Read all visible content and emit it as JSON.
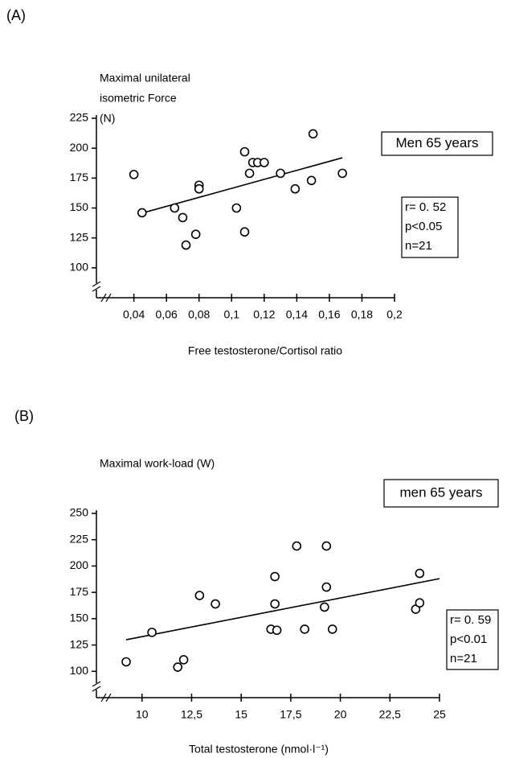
{
  "chart_data": [
    {
      "type": "scatter",
      "panel_label": "(A)",
      "y_label_lines": [
        "Maximal unilateral",
        "isometric Force",
        "(N)"
      ],
      "x_label": "Free testosterone/Cortisol ratio",
      "box_label": "Men 65 years",
      "stats": [
        "r= 0. 52",
        "p<0.05",
        "n=21"
      ],
      "x": [
        0.04,
        0.045,
        0.065,
        0.07,
        0.072,
        0.078,
        0.08,
        0.08,
        0.103,
        0.108,
        0.108,
        0.111,
        0.113,
        0.116,
        0.12,
        0.13,
        0.139,
        0.149,
        0.15,
        0.168
      ],
      "values": [
        178,
        146,
        150,
        142,
        119,
        128,
        169,
        166,
        150,
        197,
        130,
        179,
        188,
        188,
        188,
        179,
        166,
        173,
        212,
        179
      ],
      "trend_line": {
        "x": [
          0.043,
          0.168
        ],
        "y": [
          145,
          192
        ]
      },
      "xlim": [
        0.017,
        0.2
      ],
      "ylim": [
        75,
        225
      ],
      "xticks": [
        {
          "value": 0.04,
          "label": "0,04"
        },
        {
          "value": 0.06,
          "label": "0,06"
        },
        {
          "value": 0.08,
          "label": "0,08"
        },
        {
          "value": 0.1,
          "label": "0,1"
        },
        {
          "value": 0.12,
          "label": "0,12"
        },
        {
          "value": 0.14,
          "label": "0,14"
        },
        {
          "value": 0.16,
          "label": "0,16"
        },
        {
          "value": 0.18,
          "label": "0,18"
        },
        {
          "value": 0.2,
          "label": "0,2"
        }
      ],
      "yticks": [
        100,
        125,
        150,
        175,
        200,
        225
      ]
    },
    {
      "type": "scatter",
      "panel_label": "(B)",
      "y_label_lines": [
        "Maximal work-load (W)"
      ],
      "x_label": "Total testosterone (nmol·l⁻¹)",
      "box_label": "men 65 years",
      "stats": [
        "r= 0. 59",
        "p<0.01",
        "n=21"
      ],
      "x": [
        9.2,
        10.5,
        11.8,
        12.1,
        12.9,
        13.7,
        16.5,
        16.7,
        16.7,
        16.8,
        17.8,
        18.2,
        19.2,
        19.3,
        19.3,
        19.6,
        23.8,
        24,
        24
      ],
      "values": [
        109,
        137,
        104,
        111,
        172,
        164,
        140,
        190,
        164,
        139,
        219,
        140,
        161,
        180,
        219,
        140,
        159,
        165,
        193
      ],
      "trend_line": {
        "x": [
          9.2,
          25
        ],
        "y": [
          130,
          188
        ]
      },
      "xlim": [
        7.7,
        25
      ],
      "ylim": [
        75,
        250
      ],
      "xticks": [
        10,
        {
          "value": 12.5,
          "label": "12,5"
        },
        15,
        {
          "value": 17.5,
          "label": "17,5"
        },
        20,
        {
          "value": 22.5,
          "label": "22,5"
        },
        25
      ],
      "yticks": [
        100,
        125,
        150,
        175,
        200,
        225,
        250
      ]
    }
  ]
}
